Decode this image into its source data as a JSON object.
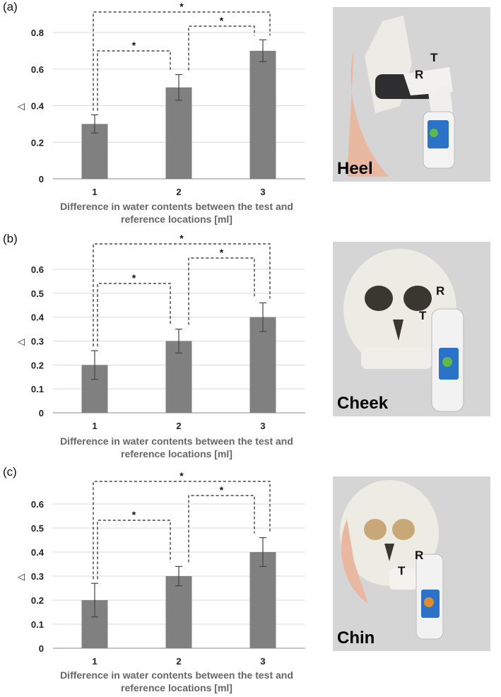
{
  "colors": {
    "bar": "#808080",
    "grid": "#d9d9d9",
    "photo_bg": "#d5d5d5"
  },
  "panels": [
    {
      "letter": "(a)",
      "photo_label": "Heel",
      "markers": [
        "T",
        "R"
      ],
      "chart_data": {
        "type": "bar",
        "categories": [
          "1",
          "2",
          "3"
        ],
        "values": [
          0.3,
          0.5,
          0.7
        ],
        "errors": [
          0.05,
          0.07,
          0.06
        ],
        "ylim": [
          0,
          0.8
        ],
        "yticks": [
          "0",
          "0.2",
          "0.4",
          "0.6",
          "0.8"
        ],
        "ylabel": "◁",
        "xlabel_lines": [
          "Difference in water contents between the test and",
          "reference locations [ml]"
        ],
        "significance": [
          {
            "pair": [
              1,
              2
            ],
            "label": "*"
          },
          {
            "pair": [
              2,
              3
            ],
            "label": "*"
          },
          {
            "pair": [
              1,
              3
            ],
            "label": "*"
          }
        ]
      }
    },
    {
      "letter": "(b)",
      "photo_label": "Cheek",
      "markers": [
        "R",
        "T"
      ],
      "chart_data": {
        "type": "bar",
        "categories": [
          "1",
          "2",
          "3"
        ],
        "values": [
          0.2,
          0.3,
          0.4
        ],
        "errors": [
          0.06,
          0.05,
          0.06
        ],
        "ylim": [
          0,
          0.6
        ],
        "yticks": [
          "0",
          "0.1",
          "0.2",
          "0.3",
          "0.4",
          "0.5",
          "0.6"
        ],
        "ylabel": "◁",
        "xlabel_lines": [
          "Difference in water contents between the test and",
          "reference locations [ml]"
        ],
        "significance": [
          {
            "pair": [
              1,
              2
            ],
            "label": "*"
          },
          {
            "pair": [
              2,
              3
            ],
            "label": "*"
          },
          {
            "pair": [
              1,
              3
            ],
            "label": "*"
          }
        ]
      }
    },
    {
      "letter": "(c)",
      "photo_label": "Chin",
      "markers": [
        "R",
        "T"
      ],
      "chart_data": {
        "type": "bar",
        "categories": [
          "1",
          "2",
          "3"
        ],
        "values": [
          0.2,
          0.3,
          0.4
        ],
        "errors": [
          0.07,
          0.04,
          0.06
        ],
        "ylim": [
          0,
          0.6
        ],
        "yticks": [
          "0",
          "0.1",
          "0.2",
          "0.3",
          "0.4",
          "0.5",
          "0.6"
        ],
        "ylabel": "◁",
        "xlabel_lines": [
          "Difference in water contents between the test and",
          "reference locations [ml]"
        ],
        "significance": [
          {
            "pair": [
              1,
              2
            ],
            "label": "*"
          },
          {
            "pair": [
              2,
              3
            ],
            "label": "*"
          },
          {
            "pair": [
              1,
              3
            ],
            "label": "*"
          }
        ]
      }
    }
  ]
}
